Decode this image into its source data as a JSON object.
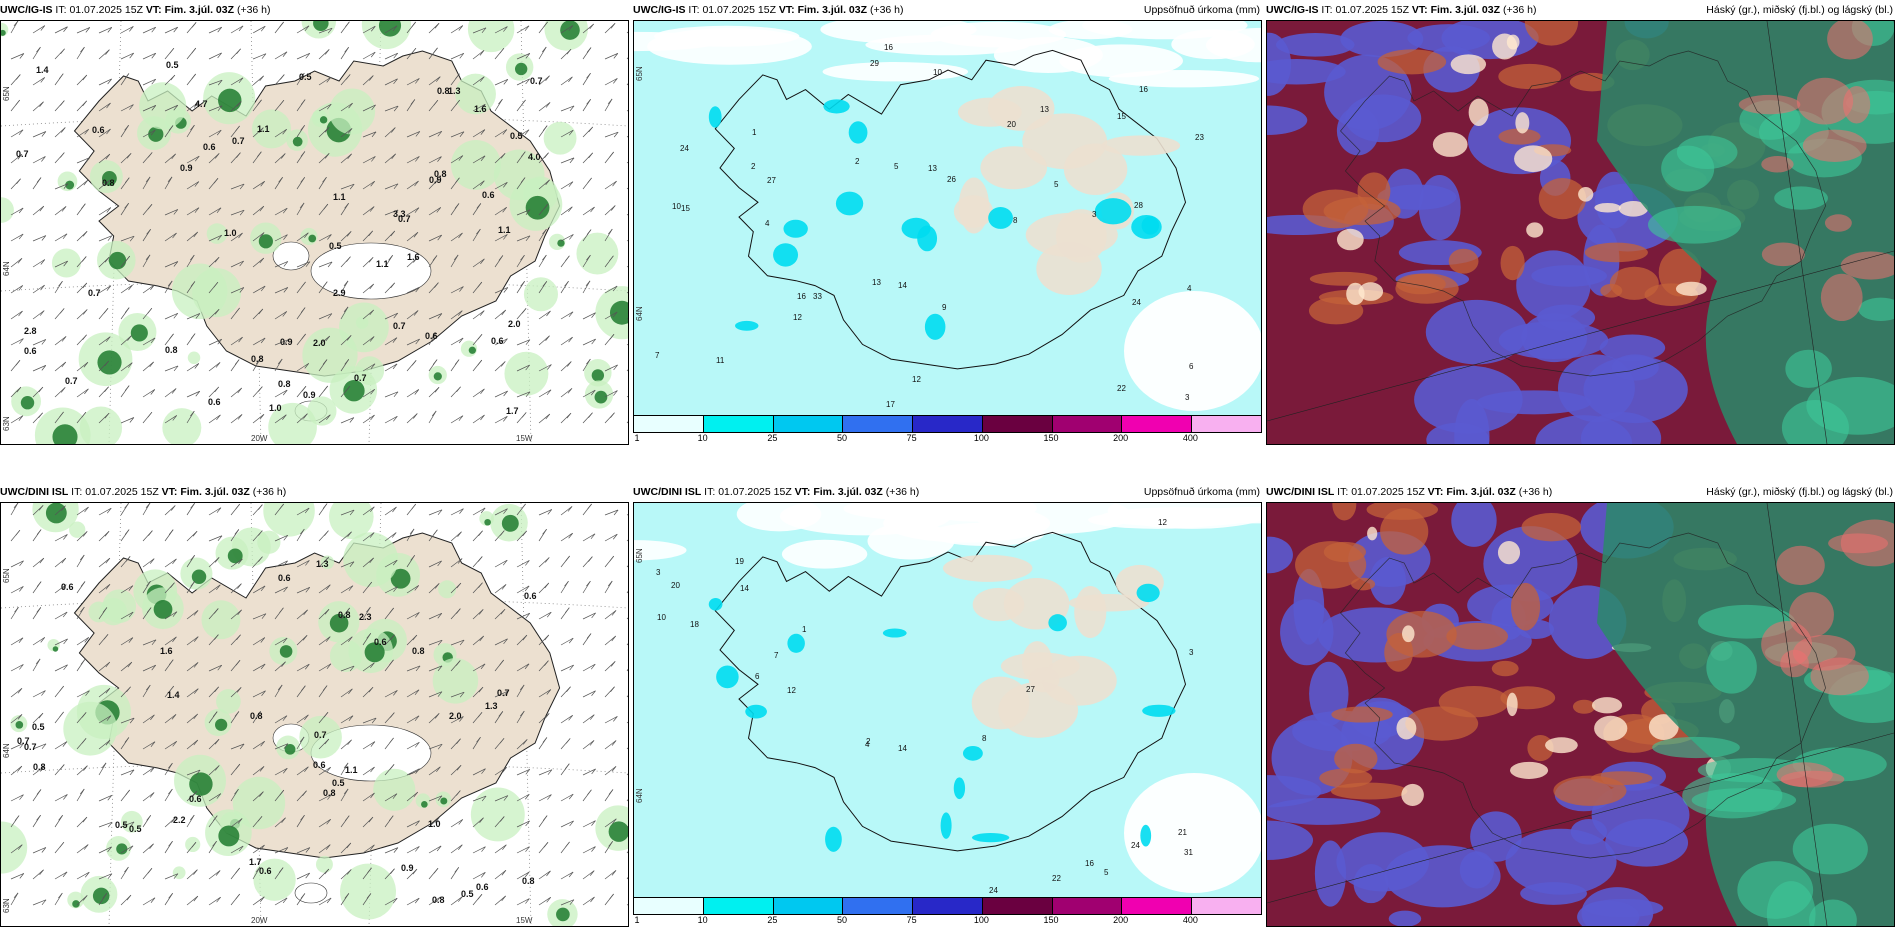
{
  "rows": [
    {
      "model": "UWC/IG-IS",
      "header": {
        "model": "UWC/IG-IS",
        "it_label": "IT:",
        "it_value": "01.07.2025 15Z",
        "vt_label": "VT:",
        "vt_value": "Fim. 3.júl. 03Z",
        "lead": "(+36 h)"
      },
      "panels": {
        "wind": {
          "title_right": "",
          "axis_labels": {
            "lat_top": "65N",
            "lat_mid": "64N",
            "lat_bottom": "63N",
            "lon_left": "20W",
            "lon_right": "15W"
          },
          "values": [
            "0.7",
            "0.9",
            "0.8",
            "1.6",
            "1.1",
            "0.7",
            "1.1",
            "1.0",
            "0.6",
            "0.7",
            "0.8",
            "1.0",
            "1.1",
            "0.5",
            "0.6",
            "1.7",
            "0.9",
            "4.7",
            "0.6",
            "0.7",
            "0.5",
            "0.7",
            "0.8",
            "0.9",
            "0.5",
            "0.7",
            "2.8",
            "0.8",
            "0.7",
            "1.3",
            "0.6",
            "0.6",
            "0.7",
            "1.6",
            "3.3",
            "2.0",
            "4.0",
            "0.8",
            "1.4",
            "0.6",
            "2.9",
            "0.5",
            "1.1",
            "0.6",
            "2.0",
            "0.9",
            "0.8"
          ]
        },
        "precip": {
          "title_right": "Uppsöfnuð úrkoma (mm)",
          "axis_labels": {
            "lat_top": "65N",
            "lat_mid": "64N"
          },
          "values": [
            "7",
            "3",
            "5",
            "16",
            "15",
            "27",
            "3",
            "4",
            "2",
            "1",
            "10",
            "12",
            "13",
            "16",
            "15",
            "22",
            "26",
            "10",
            "13",
            "33",
            "24",
            "23",
            "16",
            "29",
            "20",
            "12",
            "24",
            "28",
            "17",
            "13",
            "11",
            "14",
            "4",
            "8",
            "2",
            "5",
            "6",
            "9"
          ]
        },
        "clouds": {
          "title_right": "Háský (gr.), miðský (fj.bl.) og lágský (bl.)"
        }
      }
    },
    {
      "model": "UWC/DINI ISL",
      "header": {
        "model": "UWC/DINI ISL",
        "it_label": "IT:",
        "it_value": "01.07.2025 15Z",
        "vt_label": "VT:",
        "vt_value": "Fim. 3.júl. 03Z",
        "lead": "(+36 h)"
      },
      "panels": {
        "wind": {
          "title_right": "",
          "axis_labels": {
            "lat_top": "65N",
            "lat_mid": "64N",
            "lat_bottom": "63N",
            "lon_left": "20W",
            "lon_right": "15W"
          },
          "values": [
            "0.7",
            "1.1",
            "0.8",
            "0.6",
            "0.5",
            "0.6",
            "0.5",
            "0.8",
            "0.7",
            "0.8",
            "0.6",
            "0.8",
            "0.7",
            "1.3",
            "0.8",
            "0.6",
            "0.7",
            "0.6",
            "1.0",
            "0.5",
            "1.3",
            "0.6",
            "0.5",
            "0.8",
            "0.6",
            "2.0",
            "0.5",
            "0.6",
            "1.6",
            "2.3",
            "0.9",
            "1.4",
            "2.2",
            "0.8",
            "1.7"
          ]
        },
        "precip": {
          "title_right": "Uppsöfnuð úrkoma (mm)",
          "axis_labels": {
            "lat_top": "65N",
            "lat_mid": "64N"
          },
          "values": [
            "3",
            "1",
            "12",
            "10",
            "14",
            "21",
            "22",
            "24",
            "19",
            "12",
            "27",
            "31",
            "24",
            "14",
            "18",
            "16",
            "20",
            "4",
            "8",
            "2",
            "5",
            "3",
            "7",
            "6"
          ]
        },
        "clouds": {
          "title_right": "Háský (gr.), miðský (fj.bl.) og lágský (bl.)"
        }
      }
    }
  ],
  "precip_scale": {
    "ticks": [
      "1",
      "10",
      "25",
      "50",
      "75",
      "100",
      "150",
      "200",
      "400"
    ],
    "colors": [
      "#e8ffff",
      "#00f0f0",
      "#00c8f0",
      "#3070f0",
      "#2828c8",
      "#6a0040",
      "#a00070",
      "#f000b0",
      "#f8b0f0"
    ]
  },
  "colors": {
    "land": "#ece0d0",
    "sea": "#ffffff",
    "wind_green_light": "#c8f0c0",
    "wind_green_dark": "#1e7a2e",
    "precip_bg": "#b8f8f8",
    "cloud_high": "#7a1a3a",
    "cloud_mid": "#5a5ad0",
    "cloud_low": "#2a8a6a"
  }
}
